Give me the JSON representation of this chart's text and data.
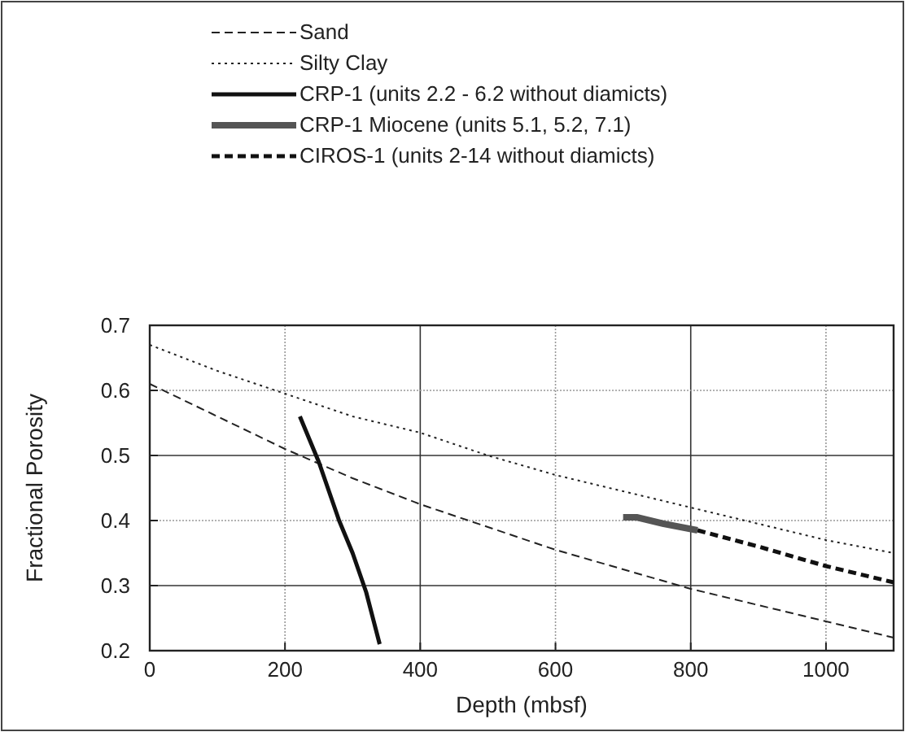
{
  "chart_data": {
    "type": "line",
    "xlabel": "Depth (mbsf)",
    "ylabel": "Fractional Porosity",
    "xlim": [
      0,
      1100
    ],
    "xticks": [
      0,
      200,
      400,
      600,
      800,
      1000
    ],
    "ylim": [
      0.2,
      0.7
    ],
    "yticks": [
      0.2,
      0.3,
      0.4,
      0.5,
      0.6,
      0.7
    ],
    "grid": true,
    "legend": "top",
    "series": [
      {
        "name": "Sand",
        "color": "#222222",
        "line_style": "dashed",
        "x": [
          0,
          100,
          200,
          300,
          400,
          500,
          600,
          700,
          800,
          900,
          1000,
          1100
        ],
        "values": [
          0.61,
          0.56,
          0.51,
          0.465,
          0.425,
          0.39,
          0.355,
          0.325,
          0.295,
          0.27,
          0.245,
          0.22
        ]
      },
      {
        "name": "Silty Clay",
        "color": "#222222",
        "line_style": "dotted",
        "x": [
          0,
          100,
          200,
          300,
          400,
          500,
          600,
          700,
          800,
          900,
          1000,
          1100
        ],
        "values": [
          0.67,
          0.63,
          0.595,
          0.56,
          0.535,
          0.5,
          0.47,
          0.445,
          0.42,
          0.395,
          0.37,
          0.35
        ]
      },
      {
        "name": "CRP-1 (units 2.2 - 6.2 without diamicts)",
        "color": "#111111",
        "line_style": "solid",
        "x": [
          222,
          250,
          280,
          300,
          320,
          340
        ],
        "values": [
          0.56,
          0.49,
          0.4,
          0.35,
          0.29,
          0.21
        ]
      },
      {
        "name": "CRP-1 Miocene (units 5.1, 5.2, 7.1)",
        "color": "#555555",
        "line_style": "solid",
        "x": [
          700,
          720,
          760,
          810
        ],
        "values": [
          0.405,
          0.405,
          0.395,
          0.385
        ]
      },
      {
        "name": "CIROS-1 (units 2-14 without diamicts)",
        "color": "#111111",
        "line_style": "dashed",
        "x": [
          810,
          900,
          1000,
          1100
        ],
        "values": [
          0.385,
          0.36,
          0.33,
          0.305
        ]
      }
    ]
  }
}
